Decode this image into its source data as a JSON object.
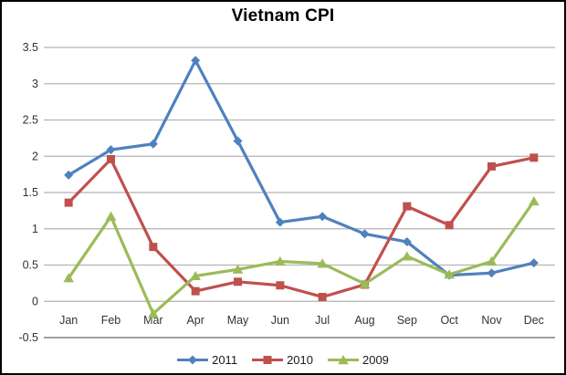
{
  "chart_data": {
    "type": "line",
    "title": "Vietnam CPI",
    "categories": [
      "Jan",
      "Feb",
      "Mar",
      "Apr",
      "May",
      "Jun",
      "Jul",
      "Aug",
      "Sep",
      "Oct",
      "Nov",
      "Dec"
    ],
    "series": [
      {
        "name": "2011",
        "color": "#4F81BD",
        "marker": "diamond",
        "values": [
          1.74,
          2.09,
          2.17,
          3.32,
          2.21,
          1.09,
          1.17,
          0.93,
          0.82,
          0.36,
          0.39,
          0.53
        ]
      },
      {
        "name": "2010",
        "color": "#C0504D",
        "marker": "square",
        "values": [
          1.36,
          1.96,
          0.75,
          0.14,
          0.27,
          0.22,
          0.06,
          0.23,
          1.31,
          1.05,
          1.86,
          1.98
        ]
      },
      {
        "name": "2009",
        "color": "#9BBB59",
        "marker": "triangle",
        "values": [
          0.32,
          1.17,
          -0.17,
          0.35,
          0.44,
          0.55,
          0.52,
          0.24,
          0.62,
          0.37,
          0.55,
          1.38
        ]
      }
    ],
    "ylim": [
      -0.5,
      3.5
    ],
    "ytick_step": 0.5,
    "ytick_labels": [
      "3.5",
      "3",
      "2.5",
      "2",
      "1.5",
      "1",
      "0.5",
      "0",
      "-0.5"
    ],
    "grid": true,
    "legend_position": "bottom",
    "colors": {
      "gridline": "#b3b3b3",
      "axis_line": "#a0a0a0",
      "tick_text": "#333333",
      "title_text": "#000000",
      "frame_border": "#000000",
      "background": "#ffffff"
    }
  }
}
